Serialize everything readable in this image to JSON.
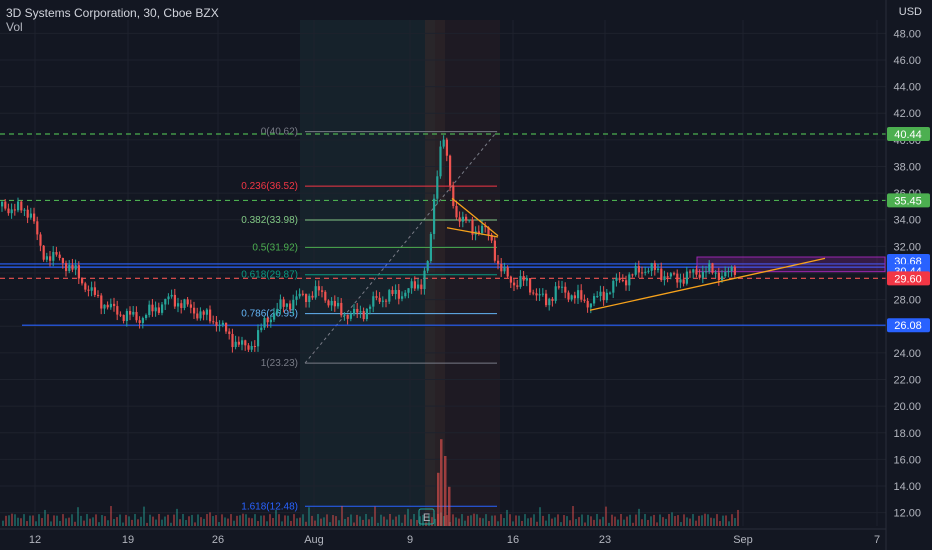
{
  "header": {
    "title": "3D Systems Corporation, 30, Cboe BZX",
    "indicator": "Vol",
    "currency": "USD"
  },
  "colors": {
    "bg": "#131722",
    "grid": "#1e222d",
    "up": "#26a69a",
    "down": "#ef5350",
    "hline_blue": "#2962ff",
    "trend": "#f7a21b",
    "rect": "#9c27b0",
    "dash": "#cfd2d9"
  },
  "chart_data": {
    "type": "candlestick",
    "ylim": [
      11,
      49
    ],
    "y_ticks": [
      "12.00",
      "14.00",
      "16.00",
      "18.00",
      "20.00",
      "22.00",
      "24.00",
      "26.00",
      "28.00",
      "30.00",
      "32.00",
      "34.00",
      "36.00",
      "38.00",
      "40.00",
      "42.00",
      "44.00",
      "46.00",
      "48.00"
    ],
    "x_ticks": [
      "12",
      "19",
      "26",
      "Aug",
      "9",
      "16",
      "23",
      "Sep",
      "7"
    ],
    "price_path": [
      [
        0,
        35.0
      ],
      [
        30,
        34.6
      ],
      [
        40,
        31.5
      ],
      [
        60,
        31.0
      ],
      [
        75,
        30.0
      ],
      [
        90,
        28.5
      ],
      [
        110,
        27.3
      ],
      [
        125,
        26.8
      ],
      [
        140,
        26.6
      ],
      [
        155,
        27.4
      ],
      [
        170,
        28.1
      ],
      [
        185,
        27.5
      ],
      [
        200,
        26.9
      ],
      [
        215,
        26.4
      ],
      [
        230,
        25.1
      ],
      [
        245,
        24.3
      ],
      [
        255,
        25.0
      ],
      [
        265,
        26.5
      ],
      [
        280,
        27.5
      ],
      [
        300,
        28.2
      ],
      [
        320,
        28.6
      ],
      [
        335,
        27.3
      ],
      [
        350,
        26.8
      ],
      [
        365,
        27.2
      ],
      [
        375,
        28.0
      ],
      [
        390,
        28.3
      ],
      [
        405,
        28.6
      ],
      [
        420,
        29.3
      ],
      [
        428,
        31.0
      ],
      [
        433,
        35.5
      ],
      [
        438,
        39.0
      ],
      [
        442,
        40.6
      ],
      [
        447,
        37.5
      ],
      [
        452,
        35.0
      ],
      [
        458,
        34.2
      ],
      [
        465,
        33.8
      ],
      [
        472,
        33.2
      ],
      [
        480,
        33.4
      ],
      [
        490,
        32.6
      ],
      [
        498,
        30.3
      ],
      [
        505,
        29.8
      ],
      [
        515,
        29.2
      ],
      [
        525,
        29.4
      ],
      [
        535,
        28.4
      ],
      [
        545,
        27.8
      ],
      [
        555,
        28.8
      ],
      [
        570,
        28.4
      ],
      [
        585,
        27.8
      ],
      [
        600,
        28.2
      ],
      [
        615,
        29.3
      ],
      [
        630,
        29.8
      ],
      [
        645,
        30.4
      ],
      [
        660,
        30.0
      ],
      [
        675,
        29.5
      ],
      [
        690,
        29.9
      ],
      [
        705,
        30.2
      ],
      [
        715,
        30.0
      ],
      [
        725,
        29.8
      ],
      [
        735,
        30.4
      ]
    ],
    "volume_spikes": [
      [
        437,
        38
      ],
      [
        440,
        62
      ],
      [
        444,
        50
      ],
      [
        448,
        28
      ]
    ],
    "horizontal_lines": [
      {
        "price": 26.08,
        "label": "26.08",
        "style": "solid",
        "color": "#2962ff"
      },
      {
        "price": 30.68,
        "label": "30.68",
        "style": "solid",
        "color": "#2962ff"
      },
      {
        "price": 30.44,
        "label": "30.44",
        "style": "solid",
        "color": "#2962ff"
      },
      {
        "price": 35.45,
        "label": "35.45",
        "style": "dashed",
        "color": "#4caf50"
      },
      {
        "price": 40.44,
        "label": "40.44",
        "style": "dashed",
        "color": "#4caf50"
      },
      {
        "price": 29.6,
        "label": "29.60",
        "style": "dashed",
        "color": "#ef5350"
      }
    ],
    "fib_levels": [
      {
        "label": "0(40.62)",
        "price": 40.62,
        "color": "#787b86"
      },
      {
        "label": "0.236(36.52)",
        "price": 36.52,
        "color": "#f23645"
      },
      {
        "label": "0.382(33.98)",
        "price": 33.98,
        "color": "#81c784"
      },
      {
        "label": "0.5(31.92)",
        "price": 31.92,
        "color": "#4caf50"
      },
      {
        "label": "0.618(29.87)",
        "price": 29.87,
        "color": "#089981"
      },
      {
        "label": "0.786(26.95)",
        "price": 26.95,
        "color": "#64b5f6"
      },
      {
        "label": "1(23.23)",
        "price": 23.23,
        "color": "#787b86"
      },
      {
        "label": "1.618(12.48)",
        "price": 12.48,
        "color": "#2962ff"
      }
    ],
    "earnings_marker": "E",
    "trend_lines": [
      {
        "from": [
          590,
          27.2
        ],
        "to": [
          825,
          31.1
        ]
      },
      {
        "from": [
          452,
          35.6
        ],
        "to": [
          498,
          32.8
        ]
      },
      {
        "from": [
          447,
          33.4
        ],
        "to": [
          498,
          32.7
        ]
      }
    ],
    "rectangle": {
      "x0": 697,
      "x1": 885,
      "p0": 30.1,
      "p1": 31.2
    }
  }
}
